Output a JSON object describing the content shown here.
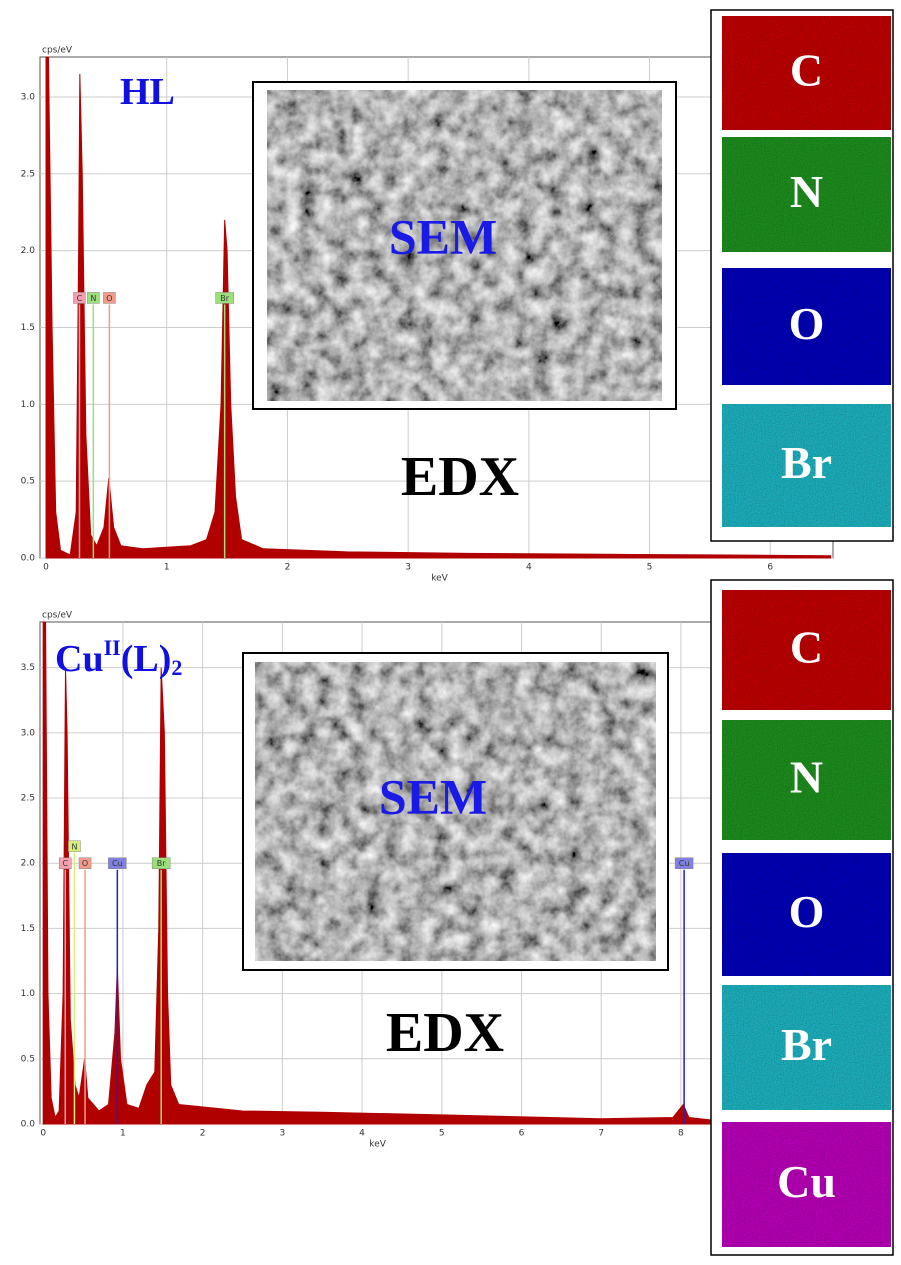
{
  "chart_data": [
    {
      "type": "area",
      "title": [
        "HL"
      ],
      "x_label": "keV",
      "y_label": "cps/eV",
      "annotations": [
        "SEM",
        "EDX"
      ],
      "x": [
        0,
        0.02,
        0.05,
        0.08,
        0.12,
        0.2,
        0.25,
        0.27,
        0.28,
        0.3,
        0.33,
        0.37,
        0.42,
        0.48,
        0.52,
        0.56,
        0.62,
        0.8,
        1.0,
        1.2,
        1.33,
        1.4,
        1.45,
        1.48,
        1.5,
        1.53,
        1.57,
        1.62,
        1.8,
        2.5,
        3.5,
        4.5,
        5.5,
        6.5
      ],
      "values": [
        3.26,
        3.26,
        1.5,
        0.3,
        0.05,
        0.02,
        0.3,
        2.0,
        3.15,
        2.5,
        0.8,
        0.15,
        0.08,
        0.2,
        0.52,
        0.2,
        0.08,
        0.06,
        0.07,
        0.08,
        0.12,
        0.3,
        1.0,
        2.2,
        2.0,
        1.0,
        0.4,
        0.12,
        0.06,
        0.04,
        0.03,
        0.025,
        0.02,
        0.015
      ],
      "color": "#b00000",
      "xlim": [
        -0.05,
        6.52
      ],
      "ylim": [
        0,
        3.26
      ],
      "xticks": [
        0,
        1,
        2,
        3,
        4,
        5,
        6
      ],
      "yticks": [
        {
          "value": 0,
          "label": "0.0"
        },
        0.5,
        {
          "value": 1,
          "label": "1.0"
        },
        1.5,
        {
          "value": 2,
          "label": "2.0"
        },
        2.5,
        {
          "value": 3,
          "label": "3.0"
        }
      ],
      "grid": true,
      "element_lines": [
        {
          "name": "C",
          "x": 0.277,
          "height": 1.65,
          "color": "#f4a0b0"
        },
        {
          "name": "N",
          "x": 0.392,
          "height": 1.65,
          "color": "#9be07a"
        },
        {
          "name": "O",
          "x": 0.525,
          "height": 1.65,
          "color": "#f49a8a"
        },
        {
          "name": "Br",
          "x": 1.48,
          "height": 1.65,
          "color": "#9be07a"
        }
      ]
    },
    {
      "type": "area",
      "title": [
        "Cu",
        "II",
        "(L)",
        "2"
      ],
      "x_label": "keV",
      "y_label": "cps/eV",
      "annotations": [
        "SEM",
        "EDX"
      ],
      "x": [
        0,
        0.03,
        0.06,
        0.1,
        0.15,
        0.2,
        0.25,
        0.28,
        0.3,
        0.34,
        0.4,
        0.45,
        0.52,
        0.56,
        0.7,
        0.82,
        0.9,
        0.93,
        0.97,
        1.05,
        1.2,
        1.3,
        1.4,
        1.45,
        1.48,
        1.52,
        1.56,
        1.6,
        1.7,
        2.5,
        3.5,
        5,
        7,
        7.9,
        8.03,
        8.1,
        8.39
      ],
      "values": [
        3.85,
        3.85,
        1.0,
        0.2,
        0.05,
        0.1,
        1.0,
        3.5,
        3.0,
        0.8,
        0.3,
        0.2,
        0.5,
        0.2,
        0.1,
        0.15,
        0.7,
        1.2,
        0.5,
        0.15,
        0.12,
        0.3,
        0.4,
        1.5,
        3.5,
        3.0,
        1.0,
        0.3,
        0.15,
        0.1,
        0.09,
        0.07,
        0.04,
        0.05,
        0.15,
        0.05,
        0.03
      ],
      "color": "#b00000",
      "xlim": [
        -0.04,
        8.39
      ],
      "ylim": [
        0,
        3.85
      ],
      "xticks": [
        0,
        1,
        2,
        3,
        4,
        5,
        6,
        7,
        8
      ],
      "yticks": [
        {
          "value": 0,
          "label": "0.0"
        },
        0.5,
        {
          "value": 1,
          "label": "1.0"
        },
        1.5,
        {
          "value": 2,
          "label": "2.0"
        },
        2.5,
        {
          "value": 3,
          "label": "3.0"
        },
        3.5
      ],
      "grid": true,
      "element_lines": [
        {
          "name": "C",
          "x": 0.277,
          "height": 1.95,
          "color": "#f4a0b0"
        },
        {
          "name": "N",
          "x": 0.392,
          "height": 2.08,
          "color": "#d8f07a"
        },
        {
          "name": "O",
          "x": 0.525,
          "height": 1.95,
          "color": "#f49a8a"
        },
        {
          "name": "Cu",
          "x": 0.93,
          "height": 1.95,
          "color": "#8080e0"
        },
        {
          "name": "Br",
          "x": 1.48,
          "height": 1.95,
          "color": "#9be07a"
        },
        {
          "name": "Cu",
          "x": 8.04,
          "height": 1.95,
          "color": "#8080e0"
        }
      ]
    }
  ],
  "maps": [
    [
      {
        "element": "C",
        "color": "#d80000"
      },
      {
        "element": "N",
        "color": "#20a020"
      },
      {
        "element": "O",
        "color": "#0000d0"
      },
      {
        "element": "Br",
        "color": "#20c8d8"
      }
    ],
    [
      {
        "element": "C",
        "color": "#d80000"
      },
      {
        "element": "N",
        "color": "#20a020"
      },
      {
        "element": "O",
        "color": "#0000d0"
      },
      {
        "element": "Br",
        "color": "#20c8d8"
      },
      {
        "element": "Cu",
        "color": "#d000d0"
      }
    ]
  ]
}
